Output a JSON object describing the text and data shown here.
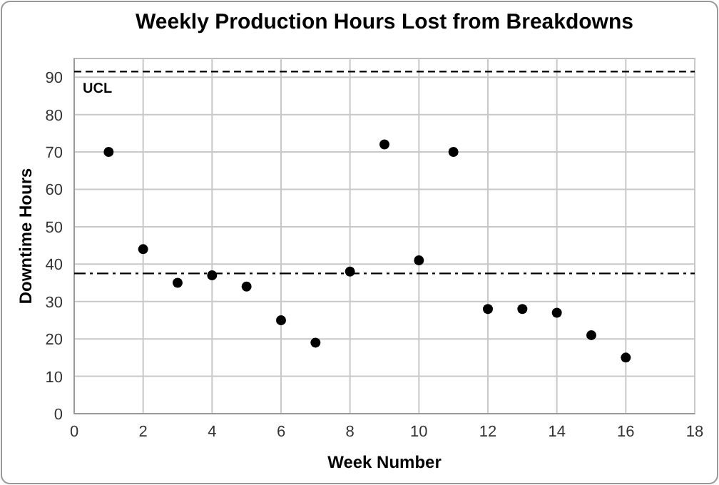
{
  "chart_data": {
    "type": "scatter",
    "title": "Weekly Production Hours Lost from Breakdowns",
    "xlabel": "Week Number",
    "ylabel": "Downtime Hours",
    "x": [
      1,
      2,
      3,
      4,
      5,
      6,
      7,
      8,
      9,
      10,
      11,
      12,
      13,
      14,
      15,
      16
    ],
    "series": [
      {
        "color": "#000000",
        "values": [
          70,
          44,
          35,
          37,
          34,
          25,
          19,
          38,
          72,
          41,
          70,
          28,
          28,
          27,
          21,
          15
        ]
      }
    ],
    "xlim": [
      0,
      18
    ],
    "xticks": [
      0,
      2,
      4,
      6,
      8,
      10,
      12,
      14,
      16,
      18
    ],
    "ylim": [
      0,
      95
    ],
    "yticks": [
      0,
      10,
      20,
      30,
      40,
      50,
      60,
      70,
      80,
      90
    ],
    "grid": true,
    "marker": "circle",
    "ref_lines": [
      {
        "axis": "y",
        "value": 91.5,
        "label": "UCL",
        "color": "#000000",
        "line_style": "dashed"
      },
      {
        "axis": "y",
        "value": 37.5,
        "label": null,
        "color": "#000000",
        "line_style": "dashdot"
      }
    ]
  }
}
